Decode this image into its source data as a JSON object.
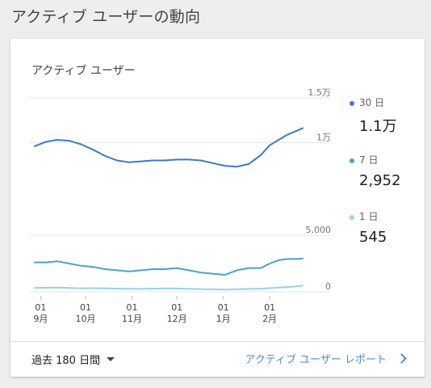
{
  "page_title": "アクティブ ユーザーの動向",
  "card_title": "アクティブ ユーザー",
  "legend": [
    {
      "name": "30 日",
      "value": "1.1万",
      "color": "#3b78d8"
    },
    {
      "name": "7 日",
      "value": "2,952",
      "color": "#4a9fe0"
    },
    {
      "name": "1 日",
      "value": "545",
      "color": "#93d3ec"
    }
  ],
  "footer": {
    "range_label": "過去 180 日間",
    "report_link": "アクティブ ユーザー レポート"
  },
  "chart_data": [
    {
      "type": "line",
      "ylim": [
        0,
        15000
      ],
      "y_ticks": [
        {
          "value": 10000,
          "label": "1万"
        },
        {
          "value": 15000,
          "label": "1.5万"
        }
      ],
      "x": [
        "2019-08-28",
        "2019-09-05",
        "2019-09-12",
        "2019-09-20",
        "2019-09-28",
        "2019-10-06",
        "2019-10-14",
        "2019-10-22",
        "2019-10-30",
        "2019-11-07",
        "2019-11-15",
        "2019-11-23",
        "2019-12-01",
        "2019-12-09",
        "2019-12-17",
        "2019-12-25",
        "2020-01-02",
        "2020-01-10",
        "2020-01-18",
        "2020-01-26",
        "2020-02-01",
        "2020-02-07",
        "2020-02-13",
        "2020-02-19",
        "2020-02-23"
      ],
      "series": [
        {
          "name": "30 日",
          "values": [
            9600,
            10100,
            10300,
            10200,
            9800,
            9200,
            8500,
            8000,
            7800,
            7900,
            8000,
            8000,
            8100,
            8100,
            8000,
            7700,
            7400,
            7300,
            7600,
            8600,
            9700,
            10300,
            10900,
            11300,
            11600
          ]
        }
      ]
    },
    {
      "type": "line",
      "ylim": [
        0,
        5000
      ],
      "y_ticks": [
        {
          "value": 0,
          "label": "0"
        },
        {
          "value": 5000,
          "label": "5,000"
        }
      ],
      "x": [
        "2019-08-28",
        "2019-09-05",
        "2019-09-12",
        "2019-09-20",
        "2019-09-28",
        "2019-10-06",
        "2019-10-14",
        "2019-10-22",
        "2019-10-30",
        "2019-11-07",
        "2019-11-15",
        "2019-11-23",
        "2019-12-01",
        "2019-12-09",
        "2019-12-17",
        "2019-12-25",
        "2020-01-02",
        "2020-01-10",
        "2020-01-18",
        "2020-01-26",
        "2020-02-01",
        "2020-02-07",
        "2020-02-13",
        "2020-02-19",
        "2020-02-23"
      ],
      "x_ticks": [
        {
          "day": "01",
          "month": "9月"
        },
        {
          "day": "01",
          "month": "10月"
        },
        {
          "day": "01",
          "month": "11月"
        },
        {
          "day": "01",
          "month": "12月"
        },
        {
          "day": "01",
          "month": "1月"
        },
        {
          "day": "01",
          "month": "2月"
        }
      ],
      "series": [
        {
          "name": "7 日",
          "values": [
            2600,
            2600,
            2700,
            2500,
            2300,
            2200,
            2000,
            1900,
            1800,
            1900,
            2000,
            2000,
            2100,
            1900,
            1700,
            1600,
            1500,
            1900,
            2100,
            2100,
            2500,
            2800,
            2900,
            2900,
            2950
          ]
        },
        {
          "name": "1 日",
          "values": [
            350,
            360,
            380,
            340,
            300,
            320,
            300,
            280,
            270,
            260,
            280,
            300,
            290,
            260,
            240,
            220,
            200,
            220,
            260,
            280,
            320,
            380,
            420,
            480,
            545
          ]
        }
      ]
    }
  ]
}
